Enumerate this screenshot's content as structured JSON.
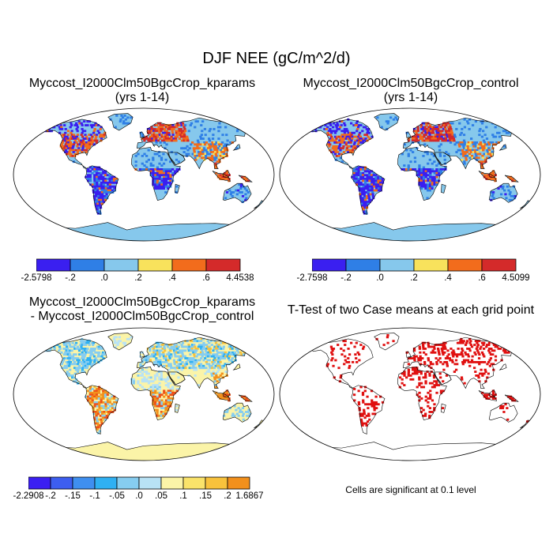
{
  "title": "DJF NEE (gC/m^2/d)",
  "colors": {
    "ocean": "#ffffff",
    "coast": "#000000",
    "nee_levels": [
      "#3a1ff0",
      "#2f7fe6",
      "#86c8ec",
      "#f8e25c",
      "#f26c1c",
      "#d42a2a"
    ],
    "diff_levels": [
      "#3b1ff2",
      "#3d5ef0",
      "#3f8ff0",
      "#2fb0f2",
      "#86cdf0",
      "#b8e2f5",
      "#fbf4a8",
      "#fae36a",
      "#f8c23c",
      "#f2901c",
      "#ee5018",
      "#e01414",
      "#c82c2c"
    ],
    "ttest_significant": "#e01010"
  },
  "panels": [
    {
      "id": "kparams",
      "title_lines": [
        "Myccost_I2000Clm50BgcCrop_kparams",
        "(yrs 1-14)"
      ],
      "colorbar": {
        "labels": [
          "-2.5798",
          "-.2",
          ".0",
          ".2",
          ".4",
          ".6",
          "4.4538"
        ]
      }
    },
    {
      "id": "control",
      "title_lines": [
        "Myccost_I2000Clm50BgcCrop_control",
        "(yrs 1-14)"
      ],
      "colorbar": {
        "labels": [
          "-2.7598",
          "-.2",
          ".0",
          ".2",
          ".4",
          ".6",
          "4.5099"
        ]
      }
    },
    {
      "id": "difference",
      "title_lines": [
        "Myccost_I2000Clm50BgcCrop_kparams",
        "- Myccost_I2000Clm50BgcCrop_control"
      ],
      "colorbar": {
        "labels": [
          "-2.2908",
          "-.2",
          "-.15",
          "-.1",
          "-.05",
          ".0",
          ".05",
          ".1",
          ".15",
          ".2",
          "1.6867"
        ]
      }
    },
    {
      "id": "ttest",
      "title_lines": [
        "T-Test of two Case means at each grid point"
      ],
      "note": "Cells are significant at 0.1 level"
    }
  ]
}
